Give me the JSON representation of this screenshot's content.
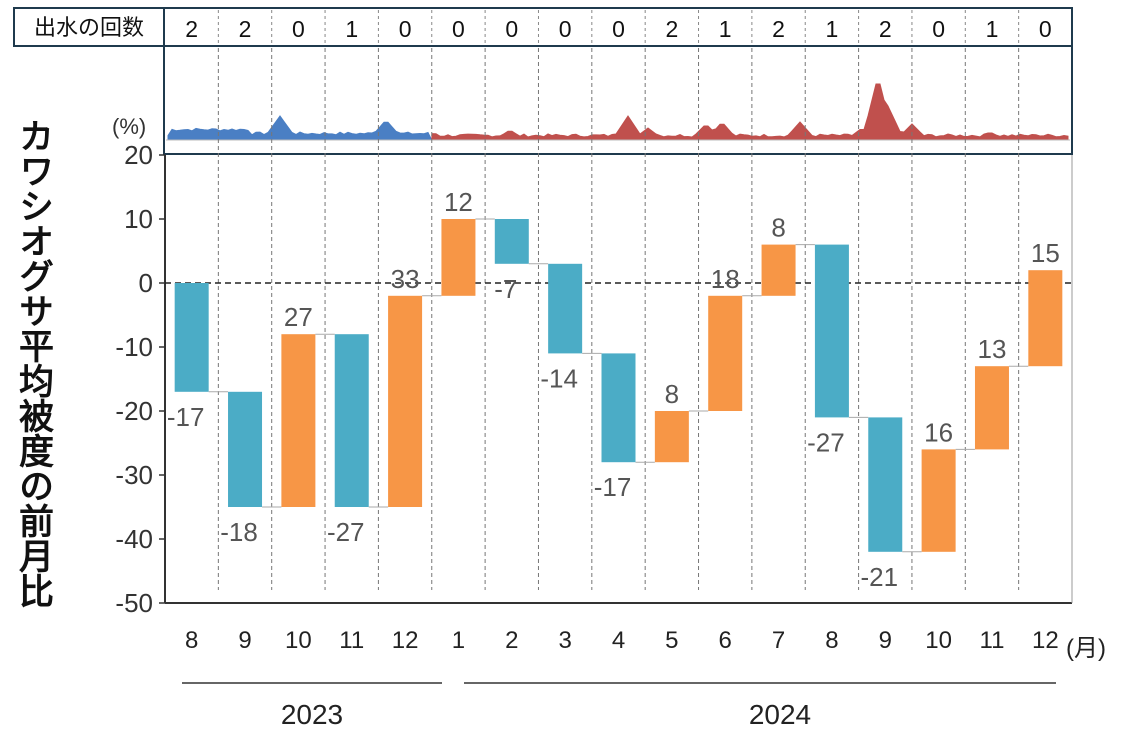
{
  "ylabel": "カワシオグサ平均被度の前月比",
  "flood_row_label": "出水の回数",
  "flood_counts": [
    "2",
    "2",
    "0",
    "1",
    "0",
    "0",
    "0",
    "0",
    "0",
    "2",
    "1",
    "2",
    "1",
    "2",
    "0",
    "1",
    "0"
  ],
  "inset_label": "(%)",
  "month_unit": "(月)",
  "years": [
    "2023",
    "2024"
  ],
  "colors": {
    "decrease": "#4bacc6",
    "increase": "#f79646",
    "inset_2023": "#4a7fc4",
    "inset_2024": "#c0504d"
  },
  "chart_data": {
    "type": "bar",
    "subtype": "waterfall",
    "categories": [
      "8",
      "9",
      "10",
      "11",
      "12",
      "1",
      "2",
      "3",
      "4",
      "5",
      "6",
      "7",
      "8",
      "9",
      "10",
      "11",
      "12"
    ],
    "values": [
      -17,
      -18,
      27,
      -27,
      33,
      12,
      -7,
      -14,
      -17,
      8,
      18,
      8,
      -27,
      -21,
      16,
      13,
      15
    ],
    "data_labels": [
      "-17",
      "-18",
      "27",
      "-27",
      "33",
      "12",
      "-7",
      "-14",
      "-17",
      "8",
      "18",
      "8",
      "-27",
      "-21",
      "16",
      "13",
      "15"
    ],
    "ylabel": "カワシオグサ平均被度の前月比",
    "ylim": [
      -50,
      20
    ],
    "yticks": [
      "20",
      "10",
      "0",
      "-10",
      "-20",
      "-30",
      "-40",
      "-50"
    ],
    "baseline_dashed": 0
  }
}
